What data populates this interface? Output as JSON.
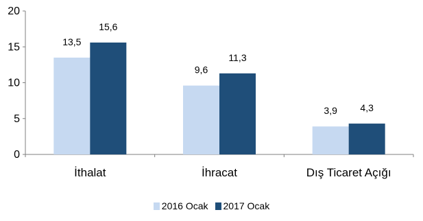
{
  "chart_data": {
    "type": "bar",
    "categories": [
      "İthalat",
      "İhracat",
      "Dış Ticaret Açığı"
    ],
    "series": [
      {
        "name": "2016 Ocak",
        "values": [
          13.5,
          9.6,
          3.9
        ],
        "labels": [
          "13,5",
          "9,6",
          "3,9"
        ],
        "color": "#c6d9f1"
      },
      {
        "name": "2017 Ocak",
        "values": [
          15.6,
          11.3,
          4.3
        ],
        "labels": [
          "15,6",
          "11,3",
          "4,3"
        ],
        "color": "#1f4e79"
      }
    ],
    "yticks": [
      0,
      5,
      10,
      15,
      20
    ],
    "ylim": [
      0,
      20
    ],
    "grid": false,
    "legend": "bottom-center"
  }
}
